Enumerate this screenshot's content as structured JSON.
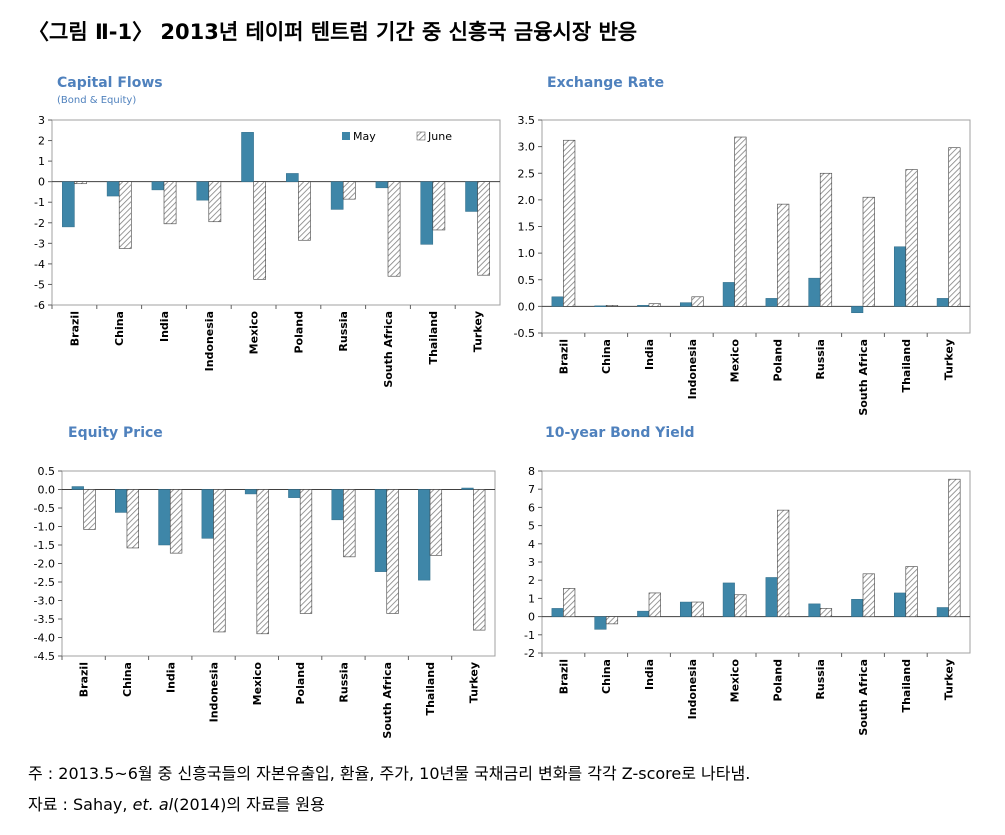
{
  "figure": {
    "title": "〈그림 Ⅱ-1〉 2013년 테이퍼 텐트럼 기간 중 신흥국 금융시장 반응"
  },
  "legend": {
    "may": "May",
    "june": "June"
  },
  "charts": [
    {
      "title": "Capital Flows",
      "subtitle": "(Bond & Equity)",
      "ylim": [
        -6,
        3
      ],
      "yticks": [
        3,
        2,
        1,
        0,
        -1,
        -2,
        -3,
        -4,
        -5,
        -6
      ],
      "show_legend": true,
      "categories": [
        "Brazil",
        "China",
        "India",
        "Indonesia",
        "Mexico",
        "Poland",
        "Russia",
        "South Africa",
        "Thailand",
        "Turkey"
      ],
      "series": [
        {
          "name": "May",
          "values": [
            -2.2,
            -0.7,
            -0.4,
            -0.9,
            2.4,
            0.4,
            -1.35,
            -0.3,
            -3.05,
            -1.45
          ]
        },
        {
          "name": "June",
          "values": [
            -0.1,
            -3.25,
            -2.05,
            -1.95,
            -4.75,
            -2.85,
            -0.85,
            -4.6,
            -2.35,
            -4.55
          ]
        }
      ]
    },
    {
      "title": "Exchange Rate",
      "subtitle": "",
      "ylim": [
        -0.5,
        3.5
      ],
      "yticks": [
        "3.5",
        "3.0",
        "2.5",
        "2.0",
        "1.5",
        "1.0",
        "0.5",
        "0.0",
        "-0.5"
      ],
      "show_legend": false,
      "categories": [
        "Brazil",
        "China",
        "India",
        "Indonesia",
        "Mexico",
        "Poland",
        "Russia",
        "South Africa",
        "Thailand",
        "Turkey"
      ],
      "series": [
        {
          "name": "May",
          "values": [
            0.18,
            0.01,
            0.02,
            0.07,
            0.45,
            0.15,
            0.53,
            -0.12,
            1.12,
            0.15
          ]
        },
        {
          "name": "June",
          "values": [
            3.12,
            0.02,
            0.05,
            0.18,
            3.18,
            1.92,
            2.5,
            2.05,
            2.57,
            2.98
          ]
        }
      ]
    },
    {
      "title": "Equity Price",
      "subtitle": "",
      "ylim": [
        -4.5,
        0.5
      ],
      "yticks": [
        "0.5",
        "0.0",
        "-0.5",
        "-1.0",
        "-1.5",
        "-2.0",
        "-2.5",
        "-3.0",
        "-3.5",
        "-4.0",
        "-4.5"
      ],
      "show_legend": false,
      "categories": [
        "Brazil",
        "China",
        "India",
        "Indonesia",
        "Mexico",
        "Poland",
        "Russia",
        "South Africa",
        "Thailand",
        "Turkey"
      ],
      "series": [
        {
          "name": "May",
          "values": [
            0.08,
            -0.62,
            -1.5,
            -1.32,
            -0.12,
            -0.22,
            -0.82,
            -2.22,
            -2.45,
            0.04
          ]
        },
        {
          "name": "June",
          "values": [
            -1.08,
            -1.58,
            -1.72,
            -3.85,
            -3.9,
            -3.35,
            -1.82,
            -3.35,
            -1.78,
            -3.8
          ]
        }
      ]
    },
    {
      "title": "10-year Bond Yield",
      "subtitle": "",
      "ylim": [
        -2,
        8
      ],
      "yticks": [
        8,
        7,
        6,
        5,
        4,
        3,
        2,
        1,
        0,
        -1,
        -2
      ],
      "show_legend": false,
      "categories": [
        "Brazil",
        "China",
        "India",
        "Indonesia",
        "Mexico",
        "Poland",
        "Russia",
        "South Africa",
        "Thailand",
        "Turkey"
      ],
      "series": [
        {
          "name": "May",
          "values": [
            0.45,
            -0.7,
            0.3,
            0.8,
            1.85,
            2.15,
            0.7,
            0.95,
            1.3,
            0.5
          ]
        },
        {
          "name": "June",
          "values": [
            1.55,
            -0.4,
            1.3,
            0.8,
            1.2,
            5.85,
            0.45,
            2.35,
            2.75,
            7.55
          ]
        }
      ]
    }
  ],
  "chart_data": [
    {
      "type": "bar",
      "title": "Capital Flows",
      "subtitle": "(Bond & Equity)",
      "categories": [
        "Brazil",
        "China",
        "India",
        "Indonesia",
        "Mexico",
        "Poland",
        "Russia",
        "South Africa",
        "Thailand",
        "Turkey"
      ],
      "series": [
        {
          "name": "May",
          "values": [
            -2.2,
            -0.7,
            -0.4,
            -0.9,
            2.4,
            0.4,
            -1.35,
            -0.3,
            -3.05,
            -1.45
          ]
        },
        {
          "name": "June",
          "values": [
            -0.1,
            -3.25,
            -2.05,
            -1.95,
            -4.75,
            -2.85,
            -0.85,
            -4.6,
            -2.35,
            -4.55
          ]
        }
      ],
      "ylim": [
        -6,
        3
      ],
      "legend": "top-right"
    },
    {
      "type": "bar",
      "title": "Exchange Rate",
      "categories": [
        "Brazil",
        "China",
        "India",
        "Indonesia",
        "Mexico",
        "Poland",
        "Russia",
        "South Africa",
        "Thailand",
        "Turkey"
      ],
      "series": [
        {
          "name": "May",
          "values": [
            0.18,
            0.01,
            0.02,
            0.07,
            0.45,
            0.15,
            0.53,
            -0.12,
            1.12,
            0.15
          ]
        },
        {
          "name": "June",
          "values": [
            3.12,
            0.02,
            0.05,
            0.18,
            3.18,
            1.92,
            2.5,
            2.05,
            2.57,
            2.98
          ]
        }
      ],
      "ylim": [
        -0.5,
        3.5
      ]
    },
    {
      "type": "bar",
      "title": "Equity Price",
      "categories": [
        "Brazil",
        "China",
        "India",
        "Indonesia",
        "Mexico",
        "Poland",
        "Russia",
        "South Africa",
        "Thailand",
        "Turkey"
      ],
      "series": [
        {
          "name": "May",
          "values": [
            0.08,
            -0.62,
            -1.5,
            -1.32,
            -0.12,
            -0.22,
            -0.82,
            -2.22,
            -2.45,
            0.04
          ]
        },
        {
          "name": "June",
          "values": [
            -1.08,
            -1.58,
            -1.72,
            -3.85,
            -3.9,
            -3.35,
            -1.82,
            -3.35,
            -1.78,
            -3.8
          ]
        }
      ],
      "ylim": [
        -4.5,
        0.5
      ]
    },
    {
      "type": "bar",
      "title": "10-year Bond Yield",
      "categories": [
        "Brazil",
        "China",
        "India",
        "Indonesia",
        "Mexico",
        "Poland",
        "Russia",
        "South Africa",
        "Thailand",
        "Turkey"
      ],
      "series": [
        {
          "name": "May",
          "values": [
            0.45,
            -0.7,
            0.3,
            0.8,
            1.85,
            2.15,
            0.7,
            0.95,
            1.3,
            0.5
          ]
        },
        {
          "name": "June",
          "values": [
            1.55,
            -0.4,
            1.3,
            0.8,
            1.2,
            5.85,
            0.45,
            2.35,
            2.75,
            7.55
          ]
        }
      ],
      "ylim": [
        -2,
        8
      ]
    }
  ],
  "notes": {
    "note_label": "주  :",
    "note_text": "2013.5~6월 중 신흥국들의 자본유출입, 환율, 주가, 10년물 국채금리 변화를 각각 Z-score로 나타냄.",
    "source_label": "자료  :",
    "source_pre": "Sahay, ",
    "source_italic": "et. al",
    "source_post": "(2014)의 자료를 원용"
  },
  "colors": {
    "title_blue": "#4f81bd",
    "may_fill": "#3e86a8",
    "june_hatch": "#7f7f7f",
    "frame": "#a0a0a0"
  }
}
